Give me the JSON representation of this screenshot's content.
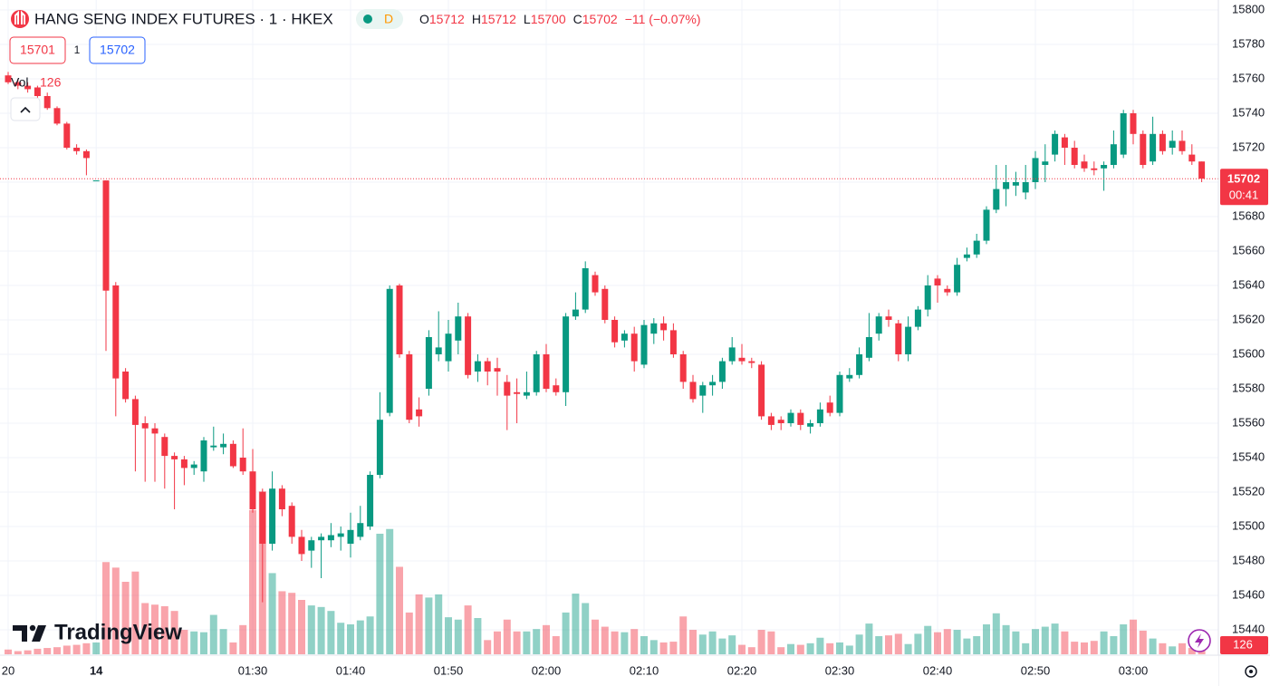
{
  "chart_data": {
    "type": "candlestick",
    "title": "HANG SENG INDEX FUTURES · 1 · HKEX",
    "status_badge": "D",
    "ohlc_labels": [
      "O",
      "H",
      "L",
      "C"
    ],
    "change": "−11 (−0.07%)",
    "bid": 15701,
    "spread": 1,
    "ask": 15702,
    "volume_label": "Vol",
    "countdown": "00:41",
    "brand": "TradingView",
    "up_color": "#089981",
    "down_color": "#f23645",
    "grid": true,
    "ylim": [
      15440,
      15800
    ],
    "yticks": [
      15440,
      15460,
      15480,
      15500,
      15520,
      15540,
      15560,
      15580,
      15600,
      15620,
      15640,
      15660,
      15680,
      15700,
      15720,
      15740,
      15760,
      15780,
      15800
    ],
    "categories": [
      "20",
      null,
      null,
      null,
      null,
      null,
      null,
      null,
      null,
      "14",
      null,
      null,
      null,
      null,
      null,
      null,
      null,
      null,
      null,
      null,
      null,
      null,
      null,
      null,
      null,
      "01:30",
      null,
      null,
      null,
      null,
      null,
      null,
      null,
      null,
      null,
      "01:40",
      null,
      null,
      null,
      null,
      null,
      null,
      null,
      null,
      null,
      "01:50",
      null,
      null,
      null,
      null,
      null,
      null,
      null,
      null,
      null,
      "02:00",
      null,
      null,
      null,
      null,
      null,
      null,
      null,
      null,
      null,
      "02:10",
      null,
      null,
      null,
      null,
      null,
      null,
      null,
      null,
      null,
      "02:20",
      null,
      null,
      null,
      null,
      null,
      null,
      null,
      null,
      null,
      "02:30",
      null,
      null,
      null,
      null,
      null,
      null,
      null,
      null,
      null,
      "02:40",
      null,
      null,
      null,
      null,
      null,
      null,
      null,
      null,
      null,
      "02:50",
      null,
      null,
      null,
      null,
      null,
      null,
      null,
      null,
      null,
      "03:00",
      null,
      null,
      null,
      null,
      null,
      null,
      null
    ],
    "open": [
      15762,
      15758,
      15756,
      15755,
      15750,
      15743,
      15734,
      15720,
      15718,
      15701,
      15701,
      15640,
      15590,
      15574,
      15560,
      15557,
      15552,
      15541,
      15539,
      15534,
      15532,
      15546,
      15546,
      15548,
      15540,
      15532,
      15520,
      15490,
      15522,
      15512,
      15494,
      15486,
      15492,
      15492,
      15494,
      15490,
      15494,
      15500,
      15530,
      15566,
      15640,
      15600,
      15568,
      15580,
      15600,
      15596,
      15608,
      15622,
      15590,
      15596,
      15592,
      15584,
      15578,
      15576,
      15578,
      15600,
      15582,
      15578,
      15622,
      15626,
      15646,
      15638,
      15620,
      15608,
      15612,
      15594,
      15612,
      15618,
      15614,
      15600,
      15584,
      15576,
      15582,
      15584,
      15596,
      15598,
      15596,
      15594,
      15564,
      15562,
      15560,
      15566,
      15558,
      15560,
      15572,
      15566,
      15586,
      15588,
      15598,
      15612,
      15622,
      15618,
      15600,
      15616,
      15626,
      15644,
      15638,
      15636,
      15656,
      15658,
      15666,
      15684,
      15696,
      15698,
      15694,
      15700,
      15710,
      15716,
      15726,
      15720,
      15712,
      15708,
      15708,
      15710,
      15716,
      15740,
      15728,
      15712,
      15728,
      15720,
      15724,
      15716,
      15712
    ],
    "high": [
      15764,
      15760,
      15758,
      15756,
      15752,
      15744,
      15735,
      15722,
      15719,
      15701,
      15701,
      15642,
      15592,
      15576,
      15564,
      15560,
      15554,
      15543,
      15541,
      15538,
      15552,
      15558,
      15554,
      15550,
      15557,
      15545,
      15522,
      15532,
      15524,
      15514,
      15498,
      15494,
      15496,
      15502,
      15500,
      15508,
      15512,
      15532,
      15578,
      15640,
      15641,
      15602,
      15575,
      15614,
      15625,
      15620,
      15630,
      15624,
      15600,
      15598,
      15598,
      15588,
      15586,
      15590,
      15602,
      15606,
      15586,
      15624,
      15636,
      15654,
      15648,
      15640,
      15622,
      15614,
      15616,
      15620,
      15621,
      15622,
      15618,
      15602,
      15588,
      15584,
      15588,
      15598,
      15610,
      15606,
      15598,
      15596,
      15566,
      15564,
      15568,
      15568,
      15562,
      15572,
      15576,
      15590,
      15592,
      15604,
      15624,
      15624,
      15626,
      15620,
      15622,
      15628,
      15646,
      15646,
      15640,
      15656,
      15662,
      15670,
      15686,
      15710,
      15710,
      15706,
      15710,
      15718,
      15722,
      15730,
      15728,
      15724,
      15716,
      15712,
      15712,
      15730,
      15742,
      15742,
      15730,
      15738,
      15730,
      15730,
      15730,
      15722,
      15712
    ],
    "low": [
      15757,
      15754,
      15752,
      15749,
      15742,
      15733,
      15719,
      15716,
      15704,
      15701,
      15602,
      15564,
      15572,
      15532,
      15526,
      15526,
      15522,
      15510,
      15524,
      15530,
      15526,
      15544,
      15542,
      15534,
      15530,
      15508,
      15456,
      15486,
      15506,
      15490,
      15480,
      15476,
      15470,
      15488,
      15486,
      15482,
      15492,
      15498,
      15528,
      15564,
      15598,
      15560,
      15558,
      15576,
      15596,
      15590,
      15600,
      15586,
      15584,
      15582,
      15576,
      15556,
      15560,
      15574,
      15576,
      15578,
      15576,
      15570,
      15620,
      15624,
      15634,
      15618,
      15604,
      15604,
      15590,
      15592,
      15606,
      15608,
      15598,
      15580,
      15572,
      15566,
      15576,
      15580,
      15594,
      15594,
      15592,
      15562,
      15556,
      15556,
      15558,
      15556,
      15554,
      15558,
      15564,
      15564,
      15584,
      15586,
      15596,
      15608,
      15616,
      15596,
      15596,
      15614,
      15622,
      15630,
      15634,
      15634,
      15654,
      15656,
      15664,
      15682,
      15686,
      15692,
      15690,
      15696,
      15700,
      15712,
      15710,
      15708,
      15706,
      15704,
      15695,
      15708,
      15714,
      15722,
      15708,
      15710,
      15716,
      15716,
      15716,
      15710,
      15700
    ],
    "close": [
      15758,
      15756,
      15754,
      15750,
      15743,
      15734,
      15720,
      15718,
      15714,
      15701,
      15637,
      15586,
      15574,
      15559,
      15557,
      15554,
      15541,
      15539,
      15534,
      15536,
      15550,
      15547,
      15548,
      15535,
      15532,
      15510,
      15490,
      15522,
      15510,
      15494,
      15484,
      15492,
      15494,
      15495,
      15496,
      15498,
      15502,
      15530,
      15562,
      15638,
      15600,
      15562,
      15564,
      15610,
      15604,
      15612,
      15622,
      15588,
      15596,
      15590,
      15590,
      15576,
      15577,
      15578,
      15600,
      15580,
      15578,
      15622,
      15626,
      15650,
      15636,
      15620,
      15607,
      15612,
      15596,
      15617,
      15618,
      15614,
      15600,
      15584,
      15574,
      15582,
      15584,
      15596,
      15604,
      15596,
      15595,
      15564,
      15559,
      15560,
      15566,
      15559,
      15560,
      15568,
      15566,
      15588,
      15588,
      15600,
      15610,
      15622,
      15620,
      15600,
      15616,
      15626,
      15640,
      15640,
      15636,
      15652,
      15658,
      15666,
      15684,
      15696,
      15700,
      15700,
      15700,
      15714,
      15712,
      15728,
      15720,
      15710,
      15708,
      15707,
      15710,
      15722,
      15740,
      15728,
      15710,
      15728,
      15718,
      15724,
      15718,
      15712,
      15702
    ],
    "volume": [
      60,
      40,
      50,
      70,
      80,
      90,
      110,
      120,
      140,
      150,
      1170,
      1100,
      920,
      1050,
      650,
      630,
      610,
      550,
      310,
      290,
      280,
      500,
      320,
      150,
      370,
      1830,
      2070,
      1030,
      800,
      780,
      690,
      620,
      600,
      550,
      400,
      380,
      430,
      480,
      1530,
      1590,
      1110,
      530,
      760,
      720,
      760,
      470,
      440,
      620,
      460,
      180,
      290,
      440,
      290,
      290,
      320,
      370,
      230,
      530,
      770,
      650,
      440,
      350,
      290,
      280,
      320,
      230,
      180,
      150,
      160,
      480,
      310,
      250,
      290,
      200,
      240,
      120,
      90,
      310,
      290,
      90,
      130,
      120,
      140,
      210,
      140,
      150,
      110,
      250,
      390,
      230,
      240,
      260,
      130,
      260,
      360,
      280,
      320,
      310,
      200,
      230,
      380,
      520,
      370,
      290,
      140,
      320,
      350,
      390,
      290,
      160,
      150,
      170,
      290,
      230,
      380,
      440,
      300,
      200,
      140,
      100,
      140,
      80,
      126
    ]
  }
}
